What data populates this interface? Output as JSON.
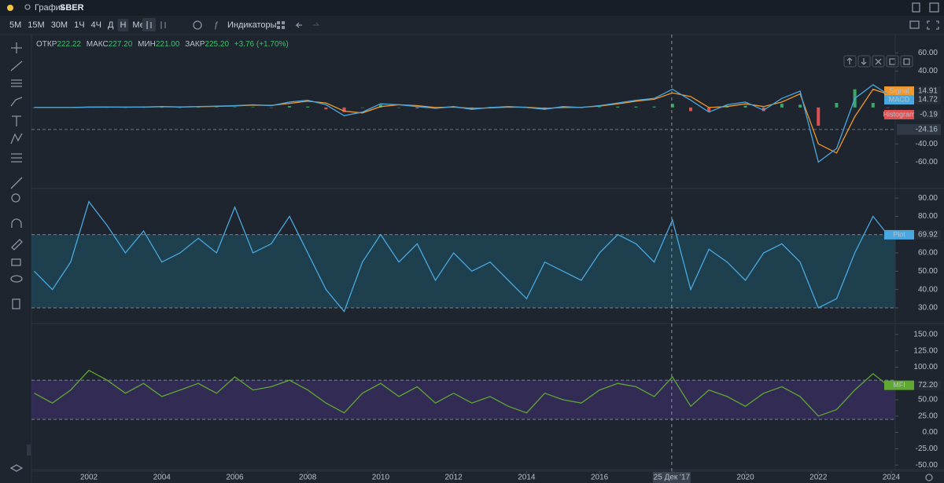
{
  "header": {
    "title": "График",
    "symbol": "SBER"
  },
  "toolbar": {
    "intervals": [
      "5M",
      "15M",
      "30M",
      "1Ч",
      "4Ч",
      "Д",
      "Н",
      "Мес"
    ],
    "indicators": "Индикаторы"
  },
  "ohlc": {
    "open_label": "ОТКР",
    "open": "222.22",
    "high_label": "МАКС",
    "high": "227.20",
    "low_label": "МИН",
    "low": "221.00",
    "close_label": "ЗАКР",
    "close": "225.20",
    "change": "+3.76 (+1.70%)"
  },
  "time": {
    "x": [
      2000.5,
      2001,
      2001.5,
      2002,
      2002.5,
      2003,
      2003.5,
      2004,
      2004.5,
      2005,
      2005.5,
      2006,
      2006.5,
      2007,
      2007.5,
      2008,
      2008.5,
      2009,
      2009.5,
      2010,
      2010.5,
      2011,
      2011.5,
      2012,
      2012.5,
      2013,
      2013.5,
      2014,
      2014.5,
      2015,
      2015.5,
      2016,
      2016.5,
      2017,
      2017.5,
      2018,
      2018.5,
      2019,
      2019.5,
      2020,
      2020.5,
      2021,
      2021.5,
      2022,
      2022.5,
      2023,
      2023.5,
      2023.9
    ],
    "ticks": [
      2002,
      2004,
      2006,
      2008,
      2010,
      2012,
      2014,
      2016,
      2018,
      2020,
      2022,
      2024
    ],
    "crosshair": 2017.98,
    "crosshair_label": "25 Дек '17"
  },
  "panes": [
    {
      "ylim": [
        -89,
        64.6
      ],
      "yticks": [
        {
          "value": 60,
          "label": "60.00"
        },
        {
          "value": 40,
          "label": "40.00"
        },
        {
          "value": -40,
          "label": "-40.00"
        },
        {
          "value": -60,
          "label": "-60.00"
        }
      ],
      "level": {
        "value": -24.16,
        "label": "-24.16"
      },
      "series": [
        {
          "name": "Histogram",
          "style": "histogram",
          "color": "#e05050",
          "last_label": "-0.19",
          "values": [
            0,
            0,
            0,
            0.2,
            0.1,
            -0.1,
            0.1,
            0.2,
            -0.2,
            0.2,
            0.3,
            0.3,
            0.4,
            -0.3,
            1.5,
            1,
            -2,
            -5,
            0,
            3,
            0,
            -1,
            -1,
            0.5,
            -1,
            0.5,
            0.5,
            -0.3,
            -1,
            1,
            -0.2,
            0.5,
            1,
            1,
            1,
            4,
            -4,
            -5,
            2,
            2,
            -4,
            4,
            3,
            -20,
            5,
            20,
            5,
            -0.19
          ]
        },
        {
          "name": "Signal",
          "color": "#f0982e",
          "last_label": "14.91",
          "values": [
            0,
            0,
            0,
            0.3,
            0.4,
            0.4,
            0.4,
            0.8,
            0.7,
            0.8,
            1.2,
            1.7,
            2.6,
            2.3,
            4.5,
            7,
            5,
            -4,
            -6,
            1,
            3,
            2,
            0,
            0.5,
            -1,
            -0.5,
            0.5,
            0.3,
            -1,
            0,
            0.2,
            1.5,
            4,
            7,
            9,
            16,
            12,
            0,
            1,
            4,
            1,
            6,
            15,
            -40,
            -50,
            -10,
            20,
            14.91
          ]
        },
        {
          "name": "MACD",
          "color": "#4aa8e0",
          "last_label": "14.72",
          "values": [
            0,
            0,
            0,
            0.5,
            0.5,
            0.3,
            0.5,
            1,
            0.5,
            1,
            1.5,
            2,
            3,
            2,
            6,
            8,
            3,
            -9,
            -5,
            4,
            3,
            1,
            -1,
            1,
            -2,
            0,
            1,
            0,
            -2,
            1,
            0,
            2,
            5,
            8,
            10,
            20,
            8,
            -5,
            3,
            6,
            -3,
            10,
            18,
            -60,
            -45,
            10,
            25,
            14.72
          ]
        }
      ]
    },
    {
      "ylim": [
        21.4,
        95.2
      ],
      "yticks": [
        {
          "value": 90,
          "label": "90.00"
        },
        {
          "value": 80,
          "label": "80.00"
        },
        {
          "value": 60,
          "label": "60.00"
        },
        {
          "value": 50,
          "label": "50.00"
        },
        {
          "value": 40,
          "label": "40.00"
        },
        {
          "value": 30,
          "label": "30.00"
        }
      ],
      "band": [
        30,
        70
      ],
      "band_color": "#1f4a5a",
      "series": [
        {
          "name": "Plot",
          "color": "#4aa8e0",
          "last_label": "69.92",
          "values": [
            50,
            40,
            55,
            88,
            75,
            60,
            72,
            55,
            60,
            68,
            60,
            85,
            60,
            65,
            80,
            60,
            40,
            28,
            55,
            70,
            55,
            65,
            45,
            60,
            50,
            55,
            45,
            35,
            55,
            50,
            45,
            60,
            70,
            65,
            55,
            78,
            40,
            62,
            55,
            45,
            60,
            65,
            55,
            30,
            35,
            60,
            80,
            69.92
          ]
        }
      ]
    },
    {
      "ylim": [
        -57,
        166.7
      ],
      "yticks": [
        {
          "value": 150,
          "label": "150.00"
        },
        {
          "value": 125,
          "label": "125.00"
        },
        {
          "value": 100,
          "label": "100.00"
        },
        {
          "value": 50,
          "label": "50.00"
        },
        {
          "value": 25,
          "label": "25.00"
        },
        {
          "value": 0,
          "label": "0.00"
        },
        {
          "value": -25,
          "label": "-25.00"
        },
        {
          "value": -50,
          "label": "-50.00"
        }
      ],
      "band": [
        20,
        80
      ],
      "band_color": "#3a2f63",
      "series": [
        {
          "name": "MFI",
          "color": "#5fa832",
          "last_label": "72.20",
          "values": [
            60,
            45,
            65,
            95,
            80,
            60,
            75,
            55,
            65,
            75,
            60,
            85,
            65,
            70,
            80,
            65,
            45,
            30,
            60,
            75,
            55,
            70,
            45,
            60,
            45,
            55,
            40,
            30,
            60,
            50,
            45,
            65,
            75,
            70,
            55,
            85,
            40,
            65,
            55,
            40,
            60,
            70,
            55,
            25,
            35,
            65,
            90,
            72.2
          ]
        }
      ]
    }
  ]
}
